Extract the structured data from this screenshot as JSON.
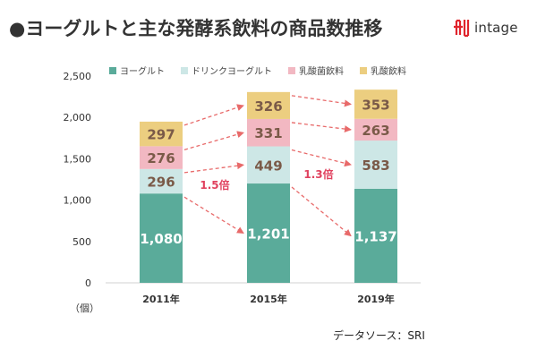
{
  "page": {
    "title": "●ヨーグルトと主な発酵系飲料の商品数推移",
    "brand": "intage",
    "source": "データソース：SRI",
    "unit": "（個）"
  },
  "colors": {
    "yogurt": "#5aab9a",
    "drink_yogurt": "#cde7e6",
    "lactic_bacteria": "#f2b8c2",
    "lactic_drink": "#ecce80",
    "arrow": "#e86a6a",
    "ratio_text": "#e0425f",
    "logo": "#e0242c"
  },
  "chart_data": {
    "type": "bar",
    "stacked": true,
    "categories": [
      "2011年",
      "2015年",
      "2019年"
    ],
    "series": [
      {
        "name": "ヨーグルト",
        "values": [
          1080,
          1201,
          1137
        ],
        "value_labels": [
          "1,080",
          "1,201",
          "1,137"
        ]
      },
      {
        "name": "ドリンクヨーグルト",
        "values": [
          296,
          449,
          583
        ],
        "value_labels": [
          "296",
          "449",
          "583"
        ]
      },
      {
        "name": "乳酸菌飲料",
        "values": [
          276,
          331,
          263
        ],
        "value_labels": [
          "276",
          "331",
          "263"
        ]
      },
      {
        "name": "乳酸飲料",
        "values": [
          297,
          326,
          353
        ],
        "value_labels": [
          "297",
          "326",
          "353"
        ]
      }
    ],
    "ylim": [
      0,
      2500
    ],
    "yticks": [
      0,
      500,
      1000,
      1500,
      2000,
      2500
    ],
    "ytick_labels": [
      "0",
      "500",
      "1,000",
      "1,500",
      "2,000",
      "2,500"
    ],
    "grid": false,
    "legend": "top",
    "annotations": [
      {
        "text": "1.5倍",
        "between": [
          "2011年",
          "2015年"
        ],
        "series": "ドリンクヨーグルト"
      },
      {
        "text": "1.3倍",
        "between": [
          "2015年",
          "2019年"
        ],
        "series": "ドリンクヨーグルト"
      }
    ]
  }
}
